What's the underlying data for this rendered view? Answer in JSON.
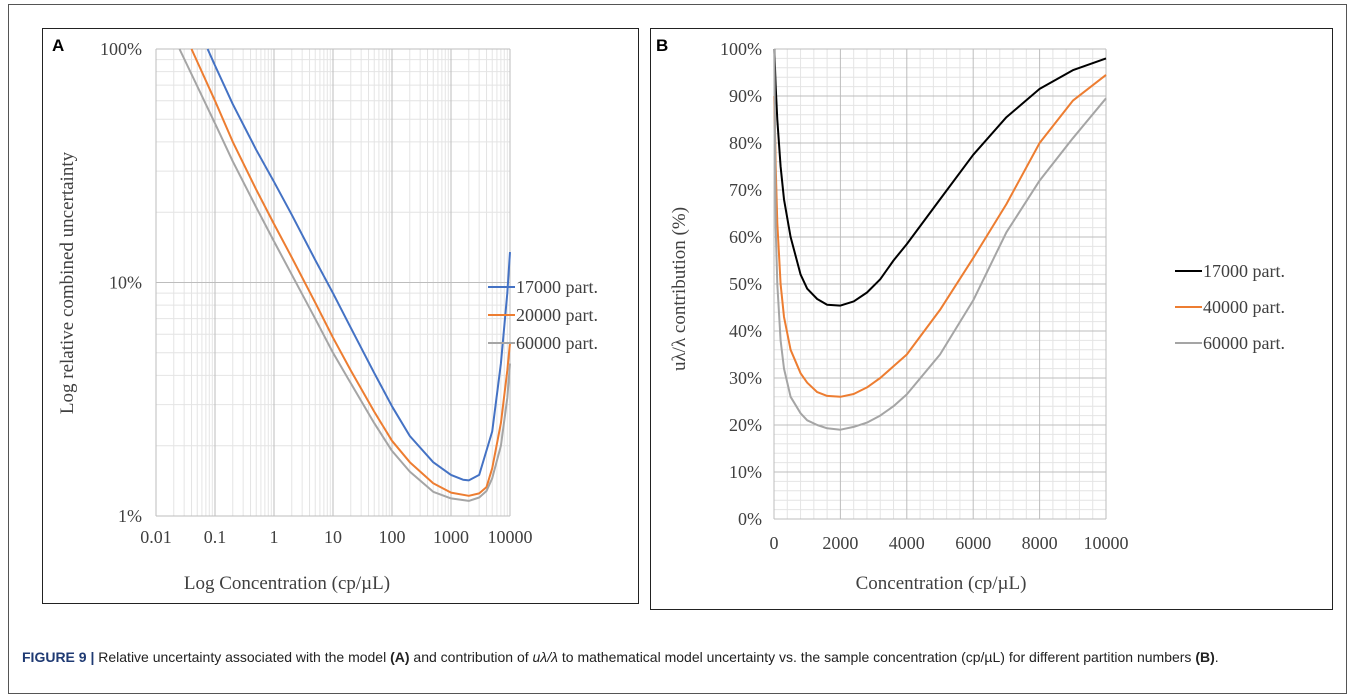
{
  "figure": {
    "caption": {
      "label": "FIGURE 9 |",
      "text_1": " Relative uncertainty associated with the model ",
      "ref_a": "(A)",
      "text_2": " and contribution of ",
      "symbol": "uλ/λ",
      "text_3": " to mathematical model uncertainty vs. the sample concentration (cp/µL) for different partition numbers ",
      "ref_b": "(B)",
      "text_4": "."
    }
  },
  "colors": {
    "blue": "#4472c4",
    "orange": "#ed7d31",
    "gray": "#a5a5a5",
    "black": "#000000"
  },
  "chart_data": [
    {
      "panel_label": "A",
      "type": "line",
      "xscale": "log",
      "yscale": "log",
      "xlim": [
        0.01,
        10000
      ],
      "ylim": [
        1,
        100
      ],
      "x_ticks": [
        "0.01",
        "0.1",
        "1",
        "10",
        "100",
        "1000",
        "10000"
      ],
      "y_ticks": [
        "1%",
        "10%",
        "100%"
      ],
      "xlabel": "Log Concentration (cp/µL)",
      "ylabel": "Log relative combined uncertainty",
      "grid": true,
      "legend_position": "right",
      "series": [
        {
          "name": "17000 part.",
          "color": "#4472c4",
          "x": [
            0.075,
            0.1,
            0.2,
            0.5,
            1,
            2,
            5,
            10,
            20,
            50,
            100,
            200,
            500,
            1000,
            1600,
            2000,
            3000,
            5000,
            7000,
            9000,
            10000
          ],
          "y": [
            100,
            85,
            58,
            37,
            27,
            19.5,
            12.5,
            9,
            6.4,
            4.1,
            2.95,
            2.2,
            1.7,
            1.5,
            1.43,
            1.42,
            1.5,
            2.3,
            4.5,
            9,
            13.5
          ]
        },
        {
          "name": "20000 part.",
          "color": "#ed7d31",
          "x": [
            0.04,
            0.1,
            0.2,
            0.5,
            1,
            2,
            5,
            10,
            20,
            50,
            100,
            200,
            500,
            1000,
            2000,
            3000,
            4000,
            5000,
            7000,
            9000,
            10000
          ],
          "y": [
            100,
            60,
            40,
            25,
            17.8,
            12.8,
            8.2,
            5.8,
            4.2,
            2.8,
            2.1,
            1.7,
            1.38,
            1.26,
            1.22,
            1.25,
            1.33,
            1.6,
            2.5,
            4.2,
            5.5
          ]
        },
        {
          "name": "60000 part.",
          "color": "#a5a5a5",
          "x": [
            0.025,
            0.1,
            0.2,
            0.5,
            1,
            2,
            5,
            10,
            20,
            50,
            100,
            200,
            500,
            1000,
            2000,
            3000,
            4000,
            5000,
            7000,
            9000,
            10000
          ],
          "y": [
            100,
            48,
            33,
            21,
            15,
            10.8,
            7,
            5,
            3.7,
            2.5,
            1.9,
            1.55,
            1.27,
            1.19,
            1.16,
            1.2,
            1.28,
            1.45,
            2,
            3.2,
            4.5
          ]
        }
      ]
    },
    {
      "panel_label": "B",
      "type": "line",
      "xlim": [
        0,
        10000
      ],
      "ylim": [
        0,
        100
      ],
      "x_ticks": [
        "0",
        "2000",
        "4000",
        "6000",
        "8000",
        "10000"
      ],
      "y_ticks": [
        "0%",
        "10%",
        "20%",
        "30%",
        "40%",
        "50%",
        "60%",
        "70%",
        "80%",
        "90%",
        "100%"
      ],
      "xlabel": "Concentration (cp/µL)",
      "ylabel": "uλ/λ contribution (%)",
      "grid": true,
      "legend_position": "right",
      "series": [
        {
          "name": "17000 part.",
          "color": "#000000",
          "x": [
            10,
            50,
            100,
            200,
            300,
            500,
            800,
            1000,
            1300,
            1600,
            2000,
            2400,
            2800,
            3200,
            3600,
            4000,
            5000,
            6000,
            7000,
            8000,
            9000,
            10000
          ],
          "y": [
            100,
            92,
            85,
            75,
            68,
            60,
            52,
            49,
            46.8,
            45.6,
            45.4,
            46.3,
            48.2,
            51,
            55,
            58.5,
            68,
            77.5,
            85.5,
            91.5,
            95.5,
            98
          ]
        },
        {
          "name": "40000 part.",
          "color": "#ed7d31",
          "x": [
            10,
            50,
            100,
            200,
            300,
            500,
            800,
            1000,
            1300,
            1600,
            2000,
            2400,
            2800,
            3200,
            3600,
            4000,
            5000,
            6000,
            7000,
            8000,
            9000,
            10000
          ],
          "y": [
            90,
            75,
            63,
            50,
            43,
            36,
            31,
            29,
            27,
            26.2,
            26,
            26.6,
            28,
            30,
            32.5,
            35,
            44.5,
            55.5,
            67,
            80,
            89,
            94.5
          ]
        },
        {
          "name": "60000 part.",
          "color": "#a5a5a5",
          "x": [
            10,
            50,
            100,
            200,
            300,
            500,
            800,
            1000,
            1300,
            1600,
            2000,
            2400,
            2800,
            3200,
            3600,
            4000,
            5000,
            6000,
            7000,
            8000,
            9000,
            10000
          ],
          "y": [
            100,
            62,
            50,
            38,
            32,
            26,
            22.5,
            21,
            20,
            19.3,
            19,
            19.6,
            20.5,
            22,
            24,
            26.5,
            35,
            46.5,
            61,
            72,
            81,
            89.5
          ]
        }
      ]
    }
  ]
}
